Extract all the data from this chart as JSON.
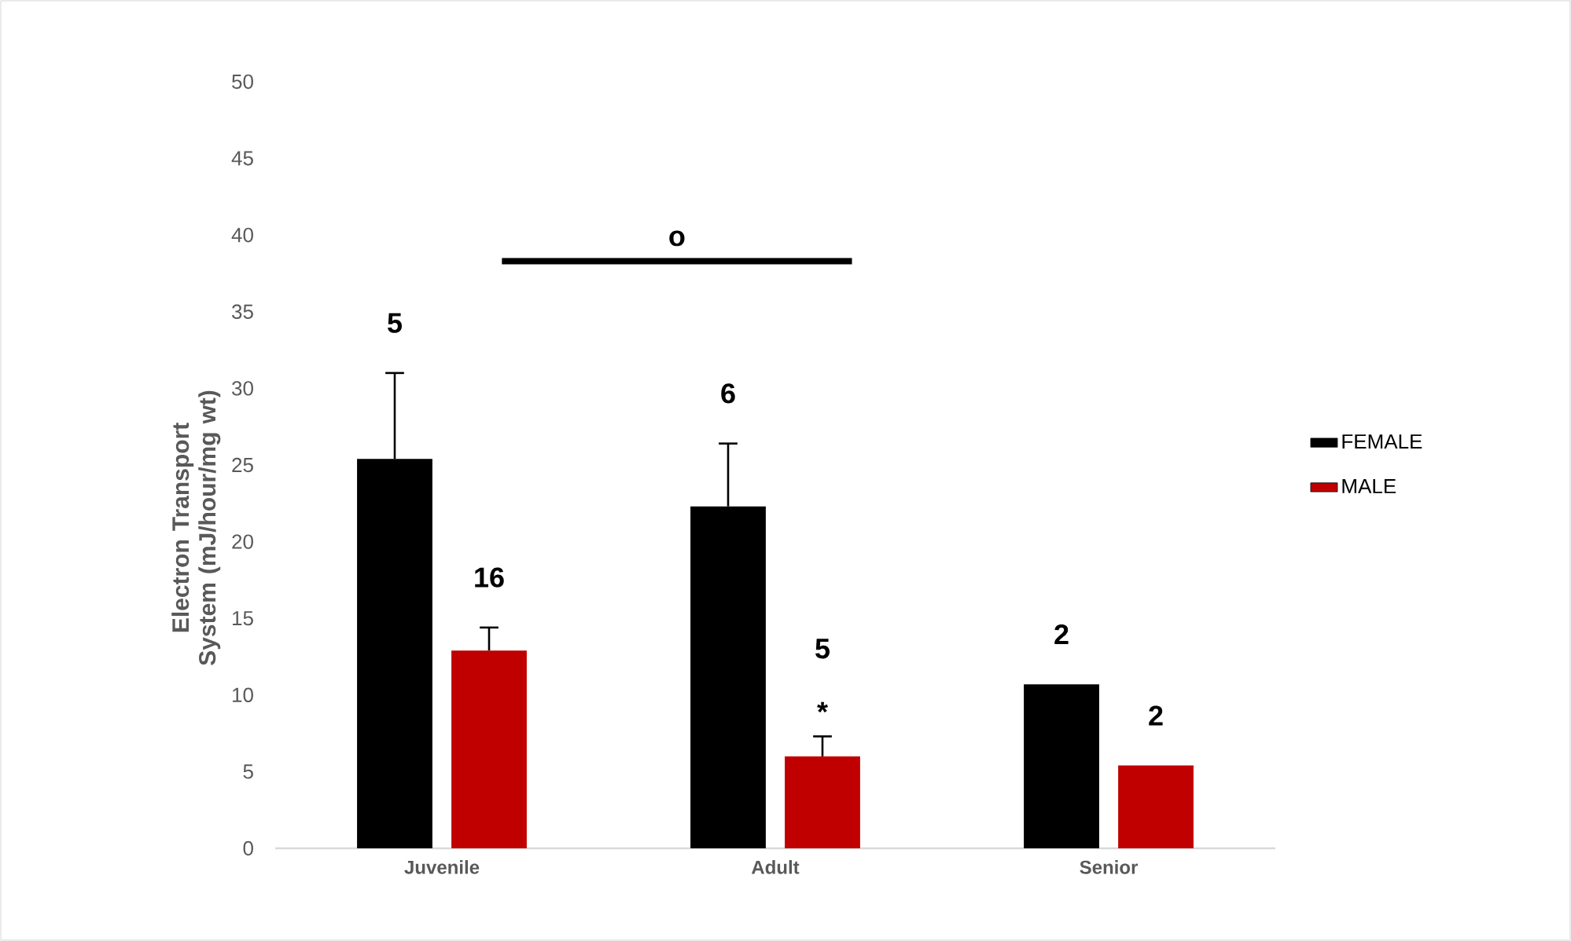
{
  "chart_data": {
    "type": "bar",
    "ylabel": "Electron Transport System (mJ/hour/mg  wt)",
    "categories": [
      "Juvenile",
      "Adult",
      "Senior"
    ],
    "series": [
      {
        "name": "FEMALE",
        "color": "#000000",
        "values": [
          25.4,
          22.3,
          10.7
        ],
        "errors": [
          [
            25.4,
            31.0
          ],
          [
            22.3,
            26.4
          ],
          null
        ]
      },
      {
        "name": "MALE",
        "color": "#c00000",
        "values": [
          12.9,
          6.0,
          5.4
        ],
        "errors": [
          [
            12.9,
            14.4
          ],
          [
            6.0,
            7.3
          ],
          null
        ]
      }
    ],
    "ylim": [
      0,
      50
    ],
    "yticks": [
      0,
      5,
      10,
      15,
      20,
      25,
      30,
      35,
      40,
      45,
      50
    ],
    "legend": "right",
    "annotations": [
      "5",
      "6",
      "2",
      "16",
      "5",
      "2",
      "*",
      "o"
    ]
  }
}
